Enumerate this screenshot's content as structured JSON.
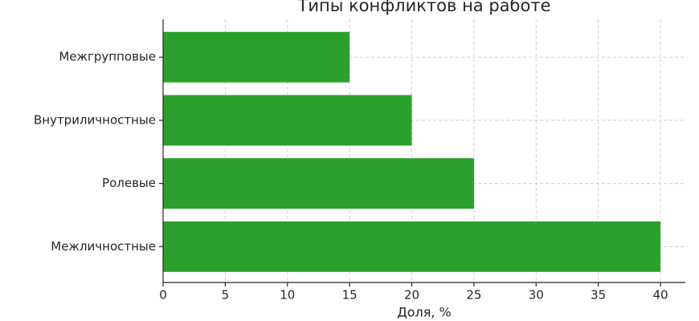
{
  "chart_data": {
    "type": "barh",
    "title": "Типы конфликтов на работе",
    "xlabel": "Доля, %",
    "categories": [
      "Межгрупповые",
      "Внутриличностные",
      "Ролевые",
      "Межличностные"
    ],
    "values": [
      15,
      20,
      25,
      40
    ],
    "color": "#2ca02c",
    "xlim": [
      0,
      42
    ],
    "xticks": [
      0,
      5,
      10,
      15,
      20,
      25,
      30,
      35,
      40
    ],
    "grid": true
  }
}
